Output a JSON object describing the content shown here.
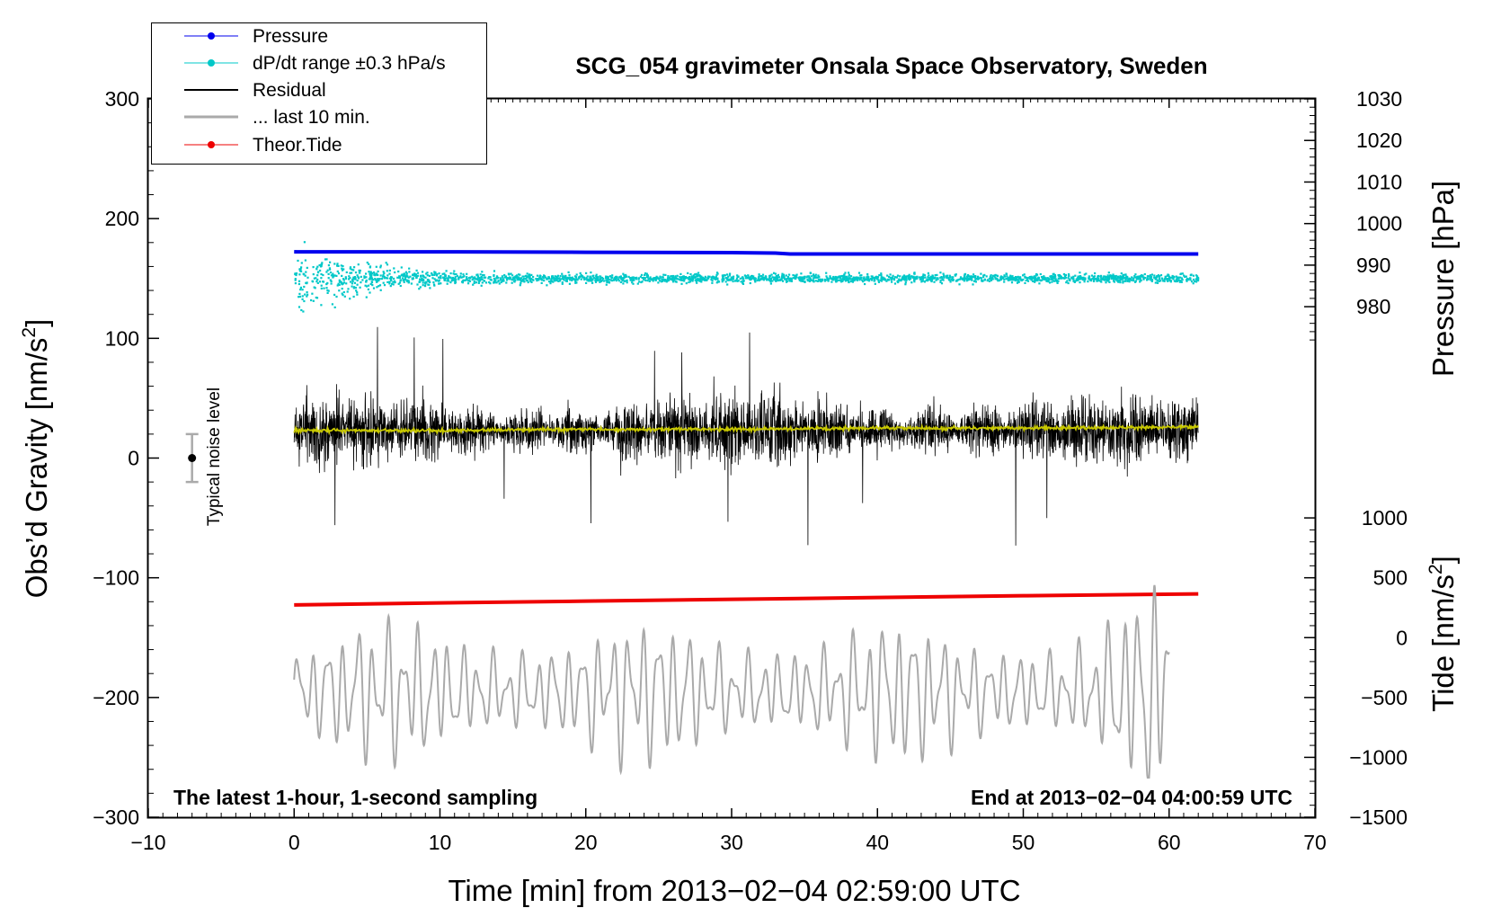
{
  "chart_data": {
    "type": "line",
    "title": "SCG_054 gravimeter Onsala Space Observatory, Sweden",
    "xlabel": "Time [min] from 2013−02−04 02:59:00 UTC",
    "ylabel": "Obs’d Gravity [nm/s",
    "ylabel_sup": "2",
    "ylabel_close": "]",
    "y2label": "Pressure [hPa]",
    "y3label": "Tide [nm/s",
    "y3label_sup": "2",
    "y3label_close": "]",
    "xlim": [
      -10,
      70
    ],
    "ylim": [
      -300,
      300
    ],
    "x_ticks": [
      -10,
      0,
      10,
      20,
      30,
      40,
      50,
      60,
      70
    ],
    "x_tick_labels": [
      "−10",
      "0",
      "10",
      "20",
      "30",
      "40",
      "50",
      "60",
      "70"
    ],
    "y_ticks": [
      -300,
      -200,
      -100,
      0,
      100,
      200,
      300
    ],
    "y_tick_labels": [
      "−300",
      "−200",
      "−100",
      "0",
      "100",
      "200",
      "300"
    ],
    "pressure_axis": {
      "range": [
        970,
        1030
      ],
      "ticks": [
        980,
        990,
        1000,
        1010,
        1020,
        1030
      ],
      "tick_labels": [
        "980",
        "990",
        "1000",
        "1010",
        "1020",
        "1030"
      ]
    },
    "tide_axis": {
      "range": [
        -1500,
        1000
      ],
      "ticks": [
        -1500,
        -1000,
        -500,
        0,
        500,
        1000
      ],
      "tick_labels": [
        "−1500",
        "−1000",
        "−500",
        "0",
        "500",
        "1000"
      ]
    },
    "annotations": {
      "bottom_left": "The latest 1-hour, 1-second sampling",
      "bottom_right": "End at 2013−02−04 04:00:59 UTC",
      "noise": "Typical noise level"
    },
    "noise_bar": {
      "x": -7,
      "center": 0,
      "half_range": 20
    },
    "legend": [
      {
        "label": "Pressure",
        "color": "#0000ee",
        "style": "line-dot"
      },
      {
        "label": "dP/dt range ±0.3 hPa/s",
        "color": "#00c8c8",
        "style": "line-dot"
      },
      {
        "label": "Residual",
        "color": "#000000",
        "style": "line"
      },
      {
        "label": "... last 10 min.",
        "color": "#aaaaaa",
        "style": "line"
      },
      {
        "label": "Theor.Tide",
        "color": "#ee0000",
        "style": "line-dot"
      }
    ],
    "series": [
      {
        "name": "Pressure",
        "color": "#0000ee",
        "axis": "pressure",
        "x": [
          0,
          10,
          20,
          30,
          33,
          34,
          40,
          50,
          62
        ],
        "values": [
          993.2,
          993.2,
          993.1,
          993.0,
          992.9,
          992.7,
          992.7,
          992.7,
          992.7
        ]
      },
      {
        "name": "Theor.Tide",
        "color": "#ee0000",
        "axis": "tide",
        "x": [
          0,
          10,
          20,
          30,
          40,
          50,
          62
        ],
        "values": [
          273,
          290,
          305,
          320,
          335,
          350,
          365
        ]
      },
      {
        "name": "Residual smoothed",
        "color": "#c8c800",
        "axis": "gravity",
        "x": [
          0,
          10,
          20,
          30,
          40,
          50,
          62
        ],
        "values": [
          23,
          23,
          24,
          24,
          25,
          25,
          26
        ]
      },
      {
        "name": "dP/dt",
        "color": "#00c8c8",
        "axis": "gravity",
        "kind": "scatter",
        "center": 150,
        "spread_start": 45,
        "spread_end": 5
      },
      {
        "name": "Residual",
        "color": "#000000",
        "axis": "gravity",
        "kind": "noise",
        "center": 23,
        "amplitude": 35,
        "min": -77,
        "max": 115
      },
      {
        "name": "... last 10 min.",
        "color": "#aaaaaa",
        "axis": "gravity",
        "kind": "oscillation",
        "center": -195,
        "amplitude": 30,
        "min": -267,
        "max": -90
      }
    ]
  }
}
